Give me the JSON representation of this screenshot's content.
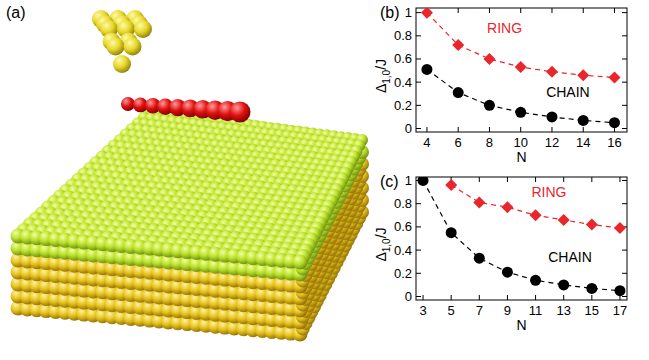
{
  "illustration": {
    "label": "(a)"
  },
  "chart_data": [
    {
      "type": "line",
      "title": "(b)",
      "ylabel": [
        {
          "text": "Δ"
        },
        {
          "text": "1,0",
          "sub": true
        },
        {
          "text": "/J"
        }
      ],
      "xlabel": "N",
      "x": [
        4,
        6,
        8,
        10,
        12,
        14,
        16
      ],
      "xlim": [
        3.3,
        16.8
      ],
      "xticks": [
        4,
        6,
        8,
        10,
        12,
        14,
        16
      ],
      "ylim": [
        -0.03,
        1.04
      ],
      "yticks": [
        0,
        0.2,
        0.4,
        0.6,
        0.8,
        1
      ],
      "series": [
        {
          "name": "RING",
          "color": "#e8262b",
          "marker": "diamond",
          "line_style": "dashed",
          "values": [
            1.0,
            0.72,
            0.6,
            0.53,
            0.49,
            0.46,
            0.44
          ]
        },
        {
          "name": "CHAIN",
          "color": "#000000",
          "marker": "circle",
          "line_style": "dashed",
          "values": [
            0.51,
            0.31,
            0.2,
            0.14,
            0.1,
            0.07,
            0.05
          ]
        }
      ]
    },
    {
      "type": "line",
      "title": "(c)",
      "ylabel": [
        {
          "text": "Δ"
        },
        {
          "text": "1,0",
          "sub": true
        },
        {
          "text": "/J"
        }
      ],
      "xlabel": "N",
      "xlim": [
        2.5,
        17.5
      ],
      "xticks": [
        3,
        5,
        7,
        9,
        11,
        13,
        15,
        17
      ],
      "ylim": [
        -0.03,
        1.03
      ],
      "yticks": [
        0,
        0.2,
        0.4,
        0.6,
        0.8,
        1
      ],
      "series": [
        {
          "name": "RING",
          "color": "#e8262b",
          "marker": "diamond",
          "line_style": "dashed",
          "x": [
            5,
            7,
            9,
            11,
            13,
            15,
            17
          ],
          "values": [
            0.96,
            0.81,
            0.77,
            0.7,
            0.66,
            0.62,
            0.59
          ]
        },
        {
          "name": "CHAIN",
          "color": "#000000",
          "marker": "circle",
          "line_style": "dashed",
          "x": [
            3,
            5,
            7,
            9,
            11,
            13,
            15,
            17
          ],
          "values": [
            1.0,
            0.55,
            0.33,
            0.21,
            0.14,
            0.1,
            0.07,
            0.05
          ]
        }
      ]
    }
  ]
}
